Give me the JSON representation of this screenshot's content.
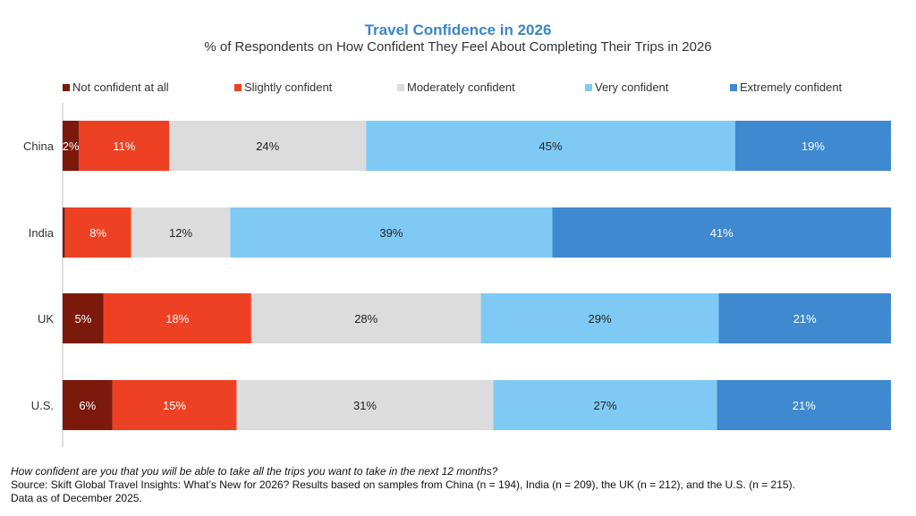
{
  "chart_data": {
    "type": "bar",
    "orientation": "horizontal",
    "stacked": true,
    "title": "Travel Confidence in 2026",
    "subtitle": "% of Respondents on How Confident They Feel About Completing Their Trips in 2026",
    "categories": [
      "China",
      "India",
      "UK",
      "U.S."
    ],
    "series": [
      {
        "name": "Not confident at all",
        "color": "#7b1a0c",
        "values": [
          2,
          0.3,
          5,
          6
        ],
        "labels": [
          "2%",
          "",
          "5%",
          "6%"
        ]
      },
      {
        "name": "Slightly confident",
        "color": "#ee4123",
        "values": [
          11,
          8,
          18,
          15
        ],
        "labels": [
          "11%",
          "8%",
          "18%",
          "15%"
        ]
      },
      {
        "name": "Moderately confident",
        "color": "#dcdcdc",
        "values": [
          24,
          12,
          28,
          31
        ],
        "labels": [
          "24%",
          "12%",
          "28%",
          "31%"
        ]
      },
      {
        "name": "Very confident",
        "color": "#7fcaf5",
        "values": [
          45,
          39,
          29,
          27
        ],
        "labels": [
          "45%",
          "39%",
          "29%",
          "27%"
        ]
      },
      {
        "name": "Extremely confident",
        "color": "#3f89d0",
        "values": [
          19,
          41,
          21,
          21
        ],
        "labels": [
          "19%",
          "41%",
          "21%",
          "21%"
        ]
      }
    ],
    "xlim": [
      0,
      100
    ],
    "grid": false,
    "legend_position": "top",
    "title_color": "#3a86c8"
  },
  "footer": {
    "question": "How confident are you that you will be able to take all the trips you want to take in the next 12 months?",
    "source": "Source: Skift Global Travel Insights: What’s New for 2026? Results based on samples from China (n = 194), India (n = 209), the UK (n = 212), and the U.S. (n = 215).",
    "date": "Data as of December 2025."
  }
}
